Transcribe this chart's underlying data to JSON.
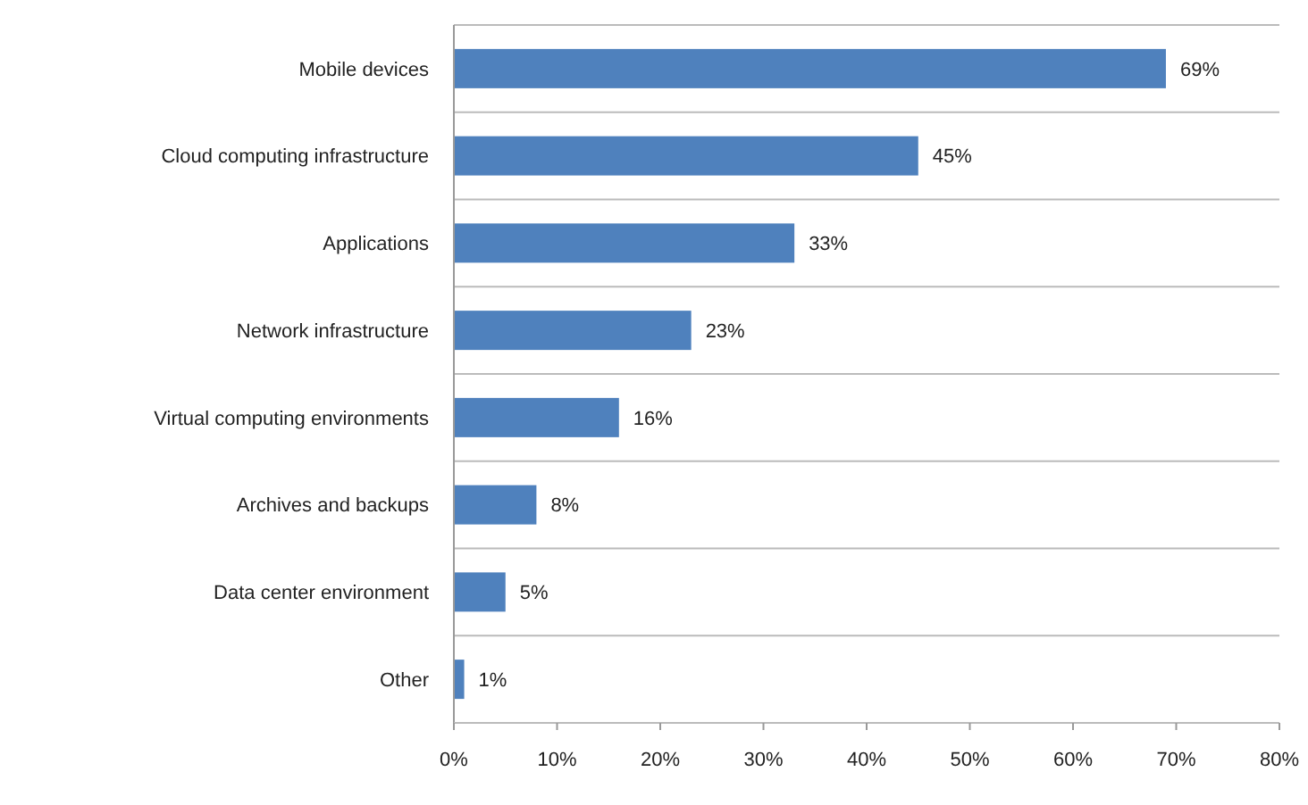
{
  "chart_data": {
    "type": "bar",
    "orientation": "horizontal",
    "categories": [
      "Mobile devices",
      "Cloud computing infrastructure",
      "Applications",
      "Network infrastructure",
      "Virtual computing environments",
      "Archives and backups",
      "Data center environment",
      "Other"
    ],
    "values": [
      69,
      45,
      33,
      23,
      16,
      8,
      5,
      1
    ],
    "value_labels": [
      "69%",
      "45%",
      "33%",
      "23%",
      "16%",
      "8%",
      "5%",
      "1%"
    ],
    "color": "#4f81bd",
    "xlim": [
      0,
      80
    ],
    "xticks": [
      {
        "value": 0,
        "label": "0%"
      },
      {
        "value": 10,
        "label": "10%"
      },
      {
        "value": 20,
        "label": "20%"
      },
      {
        "value": 30,
        "label": "30%"
      },
      {
        "value": 40,
        "label": "40%"
      },
      {
        "value": 50,
        "label": "50%"
      },
      {
        "value": 60,
        "label": "60%"
      },
      {
        "value": 70,
        "label": "70%"
      },
      {
        "value": 80,
        "label": "80%"
      }
    ],
    "grid": "y"
  }
}
